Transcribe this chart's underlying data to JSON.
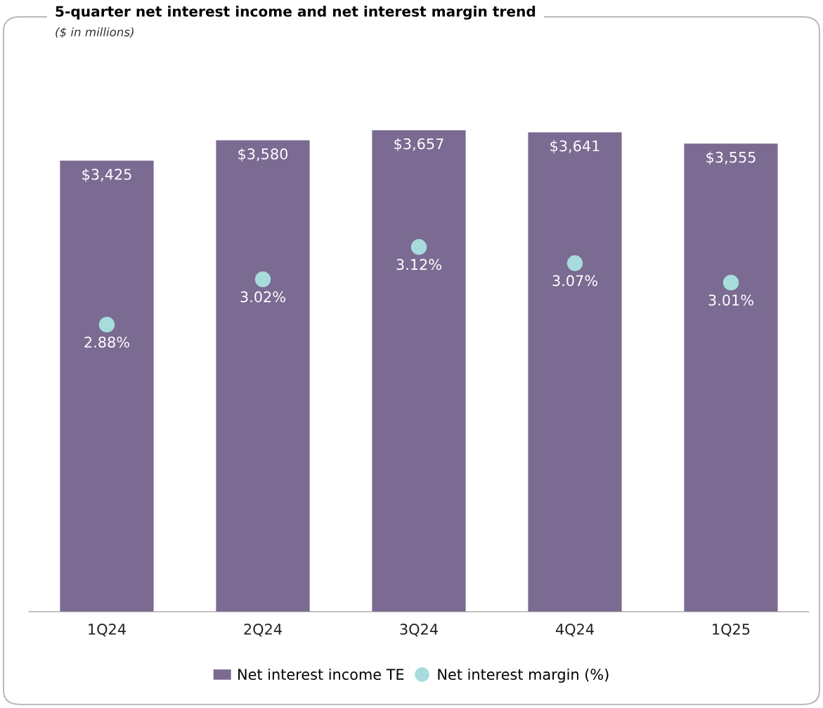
{
  "chart_data": {
    "type": "bar",
    "title": "5-quarter net interest income and net interest margin trend",
    "subtitle": "($ in millions)",
    "categories": [
      "1Q24",
      "2Q24",
      "3Q24",
      "4Q24",
      "1Q25"
    ],
    "series": [
      {
        "name": "Net interest income TE",
        "color": "#7b6a92",
        "values": [
          3425,
          3580,
          3657,
          3641,
          3555
        ],
        "value_labels": [
          "$3,425",
          "$3,580",
          "$3,657",
          "$3,641",
          "$3,555"
        ]
      },
      {
        "name": "Net interest margin (%)",
        "type": "scatter",
        "axis": "y2",
        "color": "#a8dcdc",
        "values": [
          2.88,
          3.02,
          3.12,
          3.07,
          3.01
        ],
        "value_labels": [
          "2.88%",
          "3.02%",
          "3.12%",
          "3.07%",
          "3.01%"
        ]
      }
    ],
    "tick_labels": "x",
    "grid": false,
    "legend": "bottom",
    "marker": "circle"
  }
}
